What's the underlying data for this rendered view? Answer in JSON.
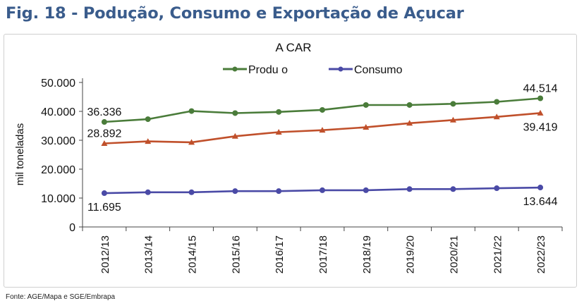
{
  "figure_title": "Fig. 18 - Podução, Consumo e Exportação de Açucar",
  "source": "Fonte: AGE/Mapa e SGE/Embrapa",
  "chart_data": {
    "type": "line",
    "title": "A CAR",
    "xlabel": "",
    "ylabel": "mil toneladas",
    "categories": [
      "2012/13",
      "2013/14",
      "2014/15",
      "2015/16",
      "2016/17",
      "2017/18",
      "2018/19",
      "2019/20",
      "2020/21",
      "2021/22",
      "2022/23"
    ],
    "ylim": [
      0,
      50000
    ],
    "yticks": [
      "0",
      "10.000",
      "20.000",
      "30.000",
      "40.000",
      "50.000"
    ],
    "grid": false,
    "legend_position": "top",
    "series": [
      {
        "name": "Produ o",
        "color": "#4a7c3a",
        "marker": "circle",
        "values": [
          36336,
          37300,
          40100,
          39400,
          39800,
          40500,
          42200,
          42200,
          42600,
          43300,
          44514
        ]
      },
      {
        "name": "",
        "color": "#c0502b",
        "marker": "triangle",
        "values": [
          28892,
          29600,
          29300,
          31400,
          32800,
          33500,
          34500,
          35900,
          37000,
          38100,
          39419
        ]
      },
      {
        "name": "Consumo",
        "color": "#4a4aa6",
        "marker": "circle",
        "values": [
          11695,
          12000,
          12000,
          12400,
          12400,
          12700,
          12700,
          13100,
          13100,
          13400,
          13644
        ]
      }
    ],
    "data_labels": [
      {
        "text": "36.336",
        "series": 0,
        "index": 0,
        "place": "above"
      },
      {
        "text": "44.514",
        "series": 0,
        "index": 10,
        "place": "above"
      },
      {
        "text": "28.892",
        "series": 1,
        "index": 0,
        "place": "above"
      },
      {
        "text": "39.419",
        "series": 1,
        "index": 10,
        "place": "below"
      },
      {
        "text": "11.695",
        "series": 2,
        "index": 0,
        "place": "below"
      },
      {
        "text": "13.644",
        "series": 2,
        "index": 10,
        "place": "below"
      }
    ]
  }
}
